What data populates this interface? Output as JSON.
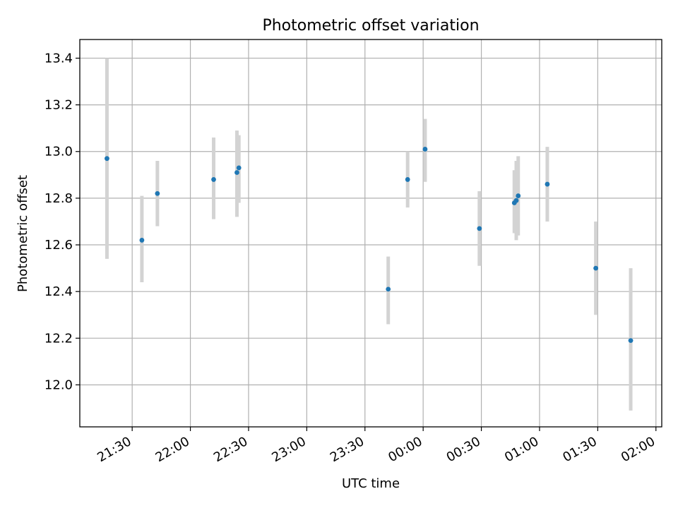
{
  "chart_data": {
    "type": "scatter",
    "title": "Photometric offset variation",
    "xlabel": "UTC time",
    "ylabel": "Photometric offset",
    "xlim": [
      "21:03",
      "02:03"
    ],
    "ylim": [
      11.82,
      13.48
    ],
    "grid": true,
    "x_ticks": [
      "21:30",
      "22:00",
      "22:30",
      "23:00",
      "23:30",
      "00:00",
      "00:30",
      "01:00",
      "01:30",
      "02:00"
    ],
    "y_ticks": [
      12.0,
      12.2,
      12.4,
      12.6,
      12.8,
      13.0,
      13.2,
      13.4
    ],
    "series": [
      {
        "marker_color": "#1f77b4",
        "error_color": "#d3d3d3",
        "points": [
          {
            "x": "21:17",
            "y": 12.97,
            "err_low": 12.54,
            "err_high": 13.4
          },
          {
            "x": "21:35",
            "y": 12.62,
            "err_low": 12.44,
            "err_high": 12.81
          },
          {
            "x": "21:43",
            "y": 12.82,
            "err_low": 12.68,
            "err_high": 12.96
          },
          {
            "x": "22:12",
            "y": 12.88,
            "err_low": 12.71,
            "err_high": 13.06
          },
          {
            "x": "22:24",
            "y": 12.91,
            "err_low": 12.72,
            "err_high": 13.09
          },
          {
            "x": "22:25",
            "y": 12.93,
            "err_low": 12.78,
            "err_high": 13.07
          },
          {
            "x": "23:42",
            "y": 12.41,
            "err_low": 12.26,
            "err_high": 12.55
          },
          {
            "x": "23:52",
            "y": 12.88,
            "err_low": 12.76,
            "err_high": 13.0
          },
          {
            "x": "00:01",
            "y": 13.01,
            "err_low": 12.87,
            "err_high": 13.14
          },
          {
            "x": "00:29",
            "y": 12.67,
            "err_low": 12.51,
            "err_high": 12.83
          },
          {
            "x": "00:47",
            "y": 12.78,
            "err_low": 12.65,
            "err_high": 12.92
          },
          {
            "x": "00:48",
            "y": 12.79,
            "err_low": 12.62,
            "err_high": 12.96
          },
          {
            "x": "00:49",
            "y": 12.81,
            "err_low": 12.64,
            "err_high": 12.98
          },
          {
            "x": "01:04",
            "y": 12.86,
            "err_low": 12.7,
            "err_high": 13.02
          },
          {
            "x": "01:29",
            "y": 12.5,
            "err_low": 12.3,
            "err_high": 12.7
          },
          {
            "x": "01:47",
            "y": 12.19,
            "err_low": 11.89,
            "err_high": 12.5
          }
        ]
      }
    ]
  }
}
